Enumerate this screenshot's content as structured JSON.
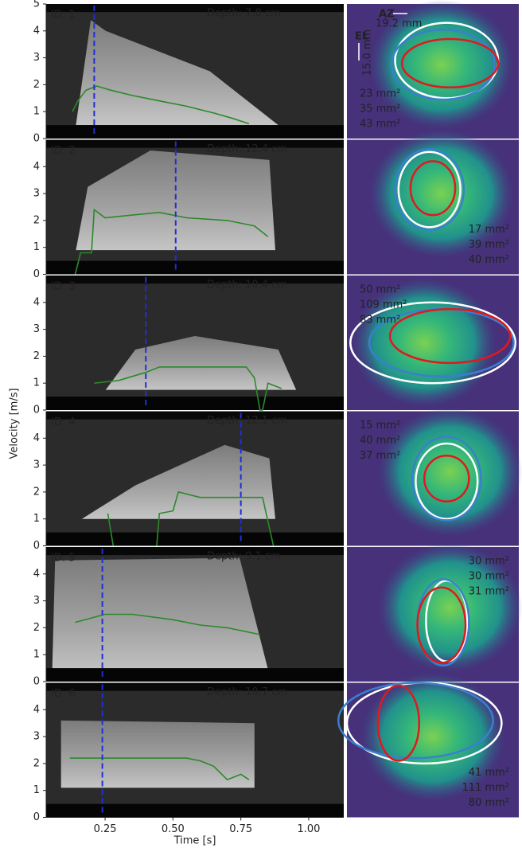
{
  "x_label": "Time [s]",
  "y_label": "Velocity [m/s]",
  "xlim": [
    0.033,
    1.129
  ],
  "xticks": [
    0.25,
    {
      "value": 0.5,
      "label": "0.50"
    },
    0.75,
    {
      "value": 1.0,
      "label": "1.00"
    }
  ],
  "scale_bar": {
    "az_label": "AZ",
    "az_size": "19.2 mm",
    "el_label": "EL",
    "el_size": "15.0 mm"
  },
  "chart_data": [
    {
      "type": "line",
      "title": "ID: 1",
      "annotation": "Depth: 7.8 cm",
      "ylim": [
        0,
        5
      ],
      "yticks": [
        0,
        1,
        2,
        3,
        4,
        5
      ],
      "series": [
        {
          "color": "#2a8a2a",
          "x": [
            0.13,
            0.15,
            0.18,
            0.22,
            0.27,
            0.35,
            0.45,
            0.55,
            0.65,
            0.72,
            0.78
          ],
          "values": [
            1.0,
            1.4,
            1.8,
            1.95,
            1.8,
            1.6,
            1.4,
            1.2,
            0.95,
            0.75,
            0.55
          ]
        }
      ],
      "marker_time": 0.21,
      "marker_color": "#1f2fd6",
      "areas": {
        "values": [
          23,
          35,
          43
        ],
        "value_labels": [
          "23 mm²",
          "35 mm²",
          "43 mm²"
        ],
        "colors": [
          "#e0191c",
          "#ffffff",
          "#5b9bd5"
        ],
        "corner": "bottom-left"
      }
    },
    {
      "type": "line",
      "title": "ID: 2",
      "annotation": "Depth: 12.4 cm",
      "ylim": [
        0,
        5
      ],
      "yticks": [
        0,
        1,
        2,
        3,
        4
      ],
      "series": [
        {
          "color": "#2a8a2a",
          "x": [
            0.14,
            0.16,
            0.2,
            0.21,
            0.25,
            0.35,
            0.45,
            0.55,
            0.7,
            0.8,
            0.85
          ],
          "values": [
            0,
            0.8,
            0.8,
            2.4,
            2.1,
            2.2,
            2.3,
            2.1,
            2.0,
            1.8,
            1.4
          ]
        }
      ],
      "marker_time": 0.51,
      "marker_color": "#1f2fd6",
      "areas": {
        "values": [
          17,
          39,
          40
        ],
        "value_labels": [
          "17 mm²",
          "39 mm²",
          "40 mm²"
        ],
        "colors": [
          "#e0191c",
          "#ffffff",
          "#5b9bd5"
        ],
        "corner": "bottom-right"
      }
    },
    {
      "type": "line",
      "title": "ID: 3",
      "annotation": "Depth: 10.4 cm",
      "ylim": [
        0,
        5
      ],
      "yticks": [
        0,
        1,
        2,
        3,
        4
      ],
      "series": [
        {
          "color": "#2a8a2a",
          "x": [
            0.21,
            0.3,
            0.4,
            0.45,
            0.55,
            0.7,
            0.77,
            0.8,
            0.82,
            0.83,
            0.85,
            0.9
          ],
          "values": [
            1.0,
            1.1,
            1.4,
            1.6,
            1.6,
            1.6,
            1.6,
            1.2,
            0,
            0,
            1.0,
            0.8
          ]
        }
      ],
      "marker_time": 0.4,
      "marker_color": "#1f2fd6",
      "areas": {
        "values": [
          50,
          109,
          83
        ],
        "value_labels": [
          "50 mm²",
          "109 mm²",
          "83 mm²"
        ],
        "colors": [
          "#e0191c",
          "#ffffff",
          "#5b9bd5"
        ],
        "corner": "top-left"
      }
    },
    {
      "type": "line",
      "title": "ID: 4",
      "annotation": "Depth: 12.1 cm",
      "ylim": [
        0,
        5
      ],
      "yticks": [
        0,
        1,
        2,
        3,
        4
      ],
      "series": [
        {
          "color": "#2a8a2a",
          "x": [
            0.26,
            0.28,
            0.36,
            0.44,
            0.45,
            0.5,
            0.52,
            0.6,
            0.75,
            0.83,
            0.87
          ],
          "values": [
            1.2,
            0,
            null,
            0,
            1.2,
            1.3,
            2.0,
            1.8,
            1.8,
            1.8,
            0
          ]
        }
      ],
      "marker_time": 0.75,
      "marker_color": "#1f2fd6",
      "areas": {
        "values": [
          15,
          40,
          37
        ],
        "value_labels": [
          "15 mm²",
          "40 mm²",
          "37 mm²"
        ],
        "colors": [
          "#e0191c",
          "#ffffff",
          "#5b9bd5"
        ],
        "corner": "top-left"
      }
    },
    {
      "type": "line",
      "title": "ID: 5",
      "annotation": "Depth: 9.1 cm",
      "ylim": [
        0,
        5
      ],
      "yticks": [
        0,
        1,
        2,
        3,
        4
      ],
      "series": [
        {
          "color": "#2a8a2a",
          "x": [
            0.14,
            0.25,
            0.35,
            0.5,
            0.6,
            0.7,
            0.82
          ],
          "values": [
            2.2,
            2.5,
            2.5,
            2.3,
            2.1,
            2.0,
            1.75
          ]
        }
      ],
      "marker_time": 0.24,
      "marker_color": "#1f2fd6",
      "areas": {
        "values": [
          30,
          30,
          31
        ],
        "value_labels": [
          "30 mm²",
          "30 mm²",
          "31 mm²"
        ],
        "colors": [
          "#e0191c",
          "#ffffff",
          "#5b9bd5"
        ],
        "corner": "top-right"
      }
    },
    {
      "type": "line",
      "title": "ID: 6",
      "annotation": "Depth: 10.7 cm",
      "ylim": [
        0,
        5
      ],
      "yticks": [
        0,
        1,
        2,
        3,
        4
      ],
      "series": [
        {
          "color": "#2a8a2a",
          "x": [
            0.12,
            0.4,
            0.5,
            0.55,
            0.6,
            0.65,
            0.7,
            0.75,
            0.78
          ],
          "values": [
            2.2,
            2.2,
            2.2,
            2.2,
            2.1,
            1.9,
            1.4,
            1.6,
            1.4
          ]
        }
      ],
      "marker_time": 0.24,
      "marker_color": "#1f2fd6",
      "areas": {
        "values": [
          41,
          111,
          80
        ],
        "value_labels": [
          "41 mm²",
          "111 mm²",
          "80 mm²"
        ],
        "colors": [
          "#e0191c",
          "#ffffff",
          "#5b9bd5"
        ],
        "corner": "bottom-right"
      }
    }
  ]
}
